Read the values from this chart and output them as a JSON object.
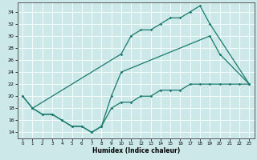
{
  "line1_x": [
    0,
    1,
    10,
    11,
    12,
    13,
    14,
    15,
    16,
    17,
    18,
    19,
    23
  ],
  "line1_y": [
    20,
    18,
    27,
    30,
    31,
    31,
    32,
    33,
    33,
    34,
    35,
    32,
    22
  ],
  "line2_x": [
    0,
    1,
    2,
    3,
    4,
    5,
    6,
    7,
    8,
    9,
    10,
    19,
    20,
    23
  ],
  "line2_y": [
    20,
    18,
    17,
    17,
    16,
    15,
    15,
    14,
    15,
    20,
    24,
    30,
    27,
    22
  ],
  "line3_x": [
    1,
    2,
    3,
    4,
    5,
    6,
    7,
    8,
    9,
    10,
    11,
    12,
    13,
    14,
    15,
    16,
    17,
    18,
    19,
    20,
    21,
    22,
    23
  ],
  "line3_y": [
    18,
    17,
    17,
    16,
    15,
    15,
    14,
    15,
    18,
    19,
    19,
    20,
    20,
    21,
    21,
    21,
    22,
    22,
    22,
    22,
    22,
    22,
    22
  ],
  "line_color": "#1a7a6e",
  "bg_color": "#cce8e8",
  "grid_color": "#ffffff",
  "xlabel": "Humidex (Indice chaleur)",
  "xlim": [
    -0.5,
    23.5
  ],
  "ylim": [
    13,
    35.5
  ],
  "yticks": [
    14,
    16,
    18,
    20,
    22,
    24,
    26,
    28,
    30,
    32,
    34
  ],
  "xticks": [
    0,
    1,
    2,
    3,
    4,
    5,
    6,
    7,
    8,
    9,
    10,
    11,
    12,
    13,
    14,
    15,
    16,
    17,
    18,
    19,
    20,
    21,
    22,
    23
  ]
}
